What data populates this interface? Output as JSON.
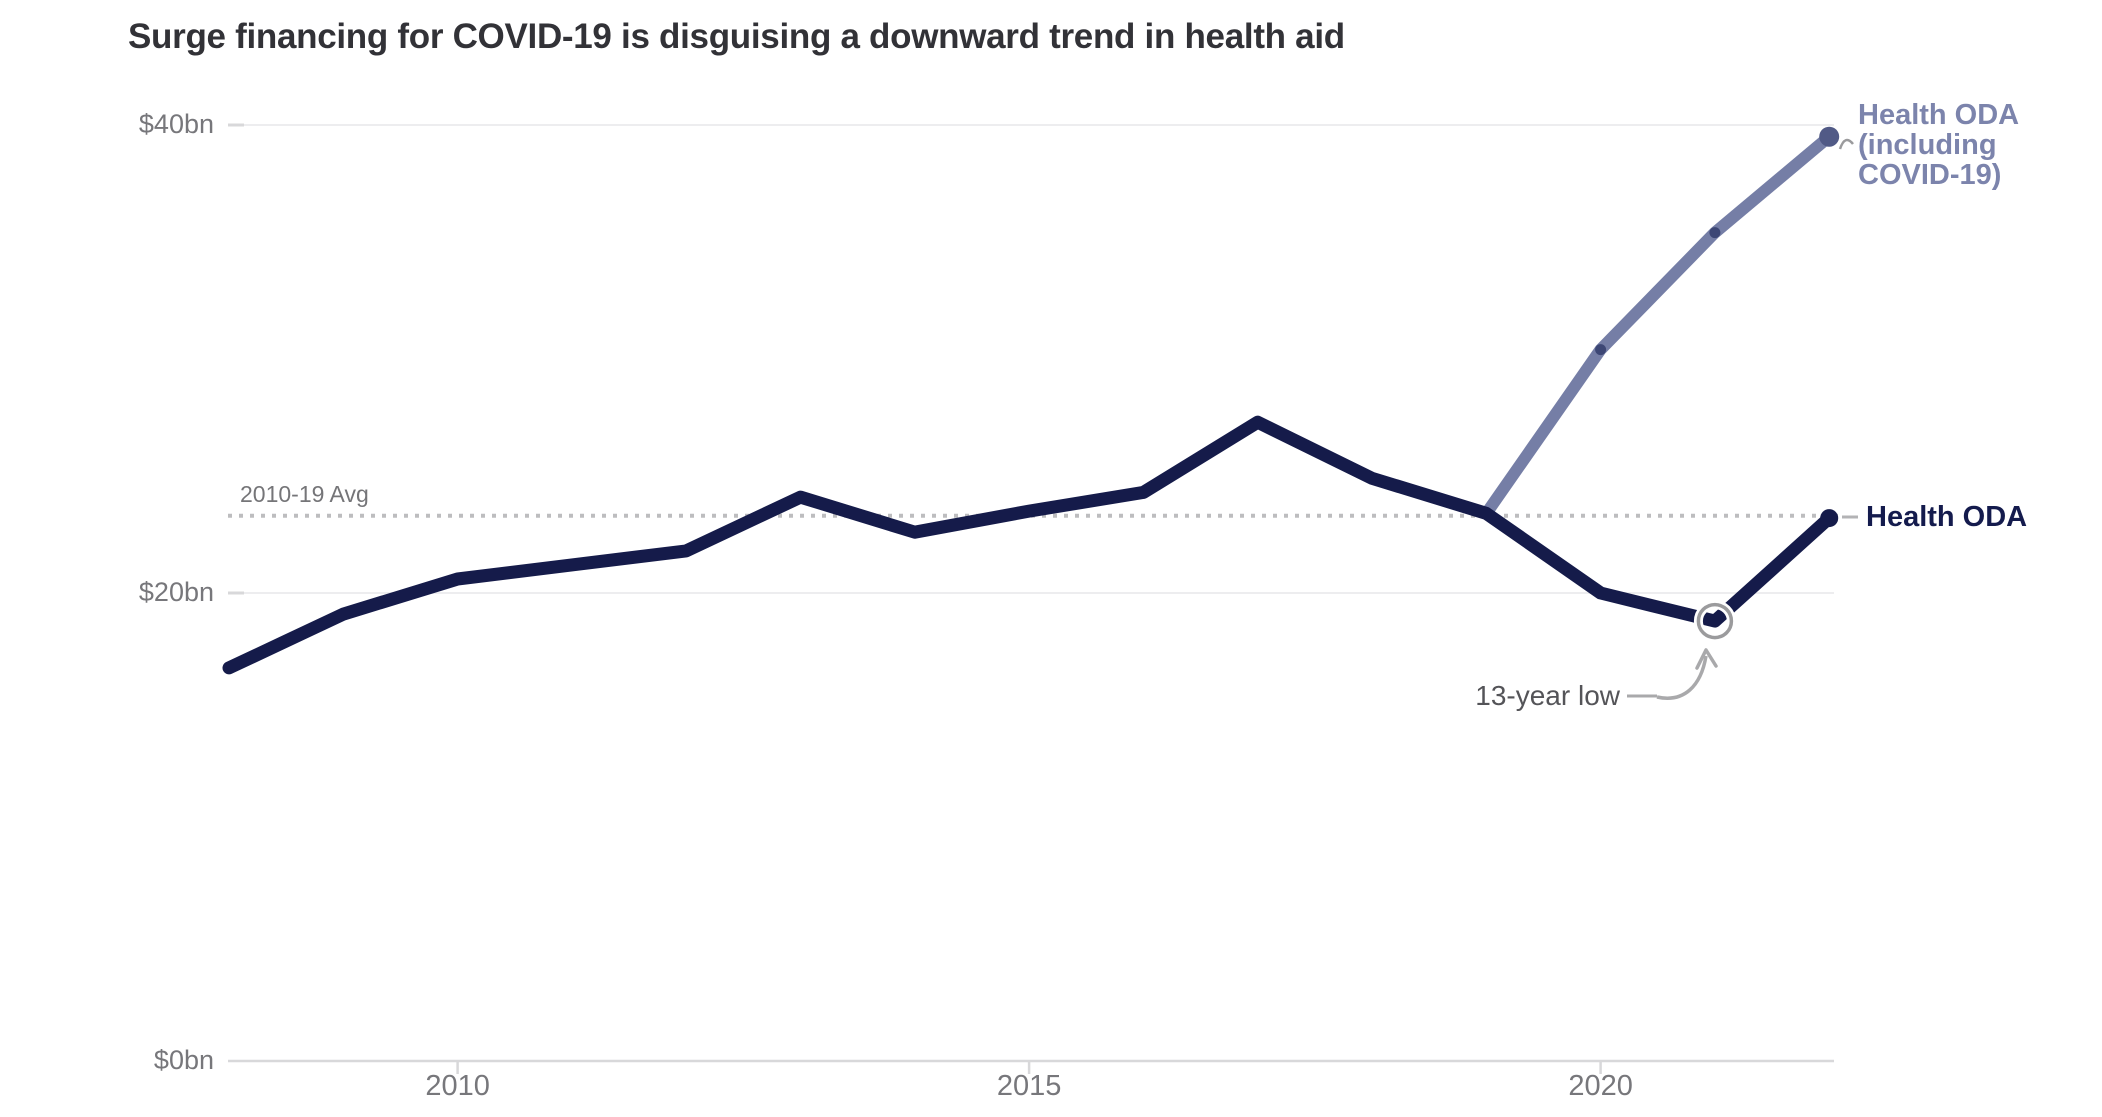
{
  "title": "Surge financing for COVID-19 is disguising a downward trend in health aid",
  "chart_data": {
    "type": "line",
    "x": [
      2008,
      2009,
      2010,
      2011,
      2012,
      2013,
      2014,
      2015,
      2016,
      2017,
      2018,
      2019,
      2020,
      2021,
      2022
    ],
    "series": [
      {
        "name": "Health ODA",
        "color": "#151b4a",
        "x": [
          2008,
          2009,
          2010,
          2011,
          2012,
          2013,
          2014,
          2015,
          2016,
          2017,
          2018,
          2019,
          2020,
          2021,
          2022
        ],
        "values": [
          16.8,
          19.1,
          20.6,
          21.2,
          21.8,
          24.1,
          22.6,
          23.5,
          24.3,
          27.3,
          24.9,
          23.4,
          20.0,
          18.8,
          23.2
        ]
      },
      {
        "name": "Health ODA (including COVID-19)",
        "color": "#757ea6",
        "x": [
          2019,
          2020,
          2021,
          2022
        ],
        "values": [
          23.4,
          30.4,
          35.4,
          39.5
        ]
      }
    ],
    "reference_line": {
      "label": "2010-19 Avg",
      "value": 23.3
    },
    "annotation": {
      "text": "13-year low",
      "year": 2021,
      "value": 18.8
    },
    "y_ticks": [
      {
        "label": "$40bn",
        "value": 40
      },
      {
        "label": "$20bn",
        "value": 20
      },
      {
        "label": "$0bn",
        "value": 0
      }
    ],
    "x_ticks": [
      {
        "label": "2010",
        "year": 2010
      },
      {
        "label": "2015",
        "year": 2015
      },
      {
        "label": "2020",
        "year": 2020
      }
    ],
    "ylim": [
      0,
      40
    ],
    "grid": "horizontal",
    "legend_position": "right-end-of-lines",
    "series_end_labels": {
      "covid": "Health ODA\n(including\nCOVID-19)",
      "oda": "Health ODA"
    }
  },
  "colors": {
    "oda_line": "#151b4a",
    "covid_line": "#757ea6",
    "covid_label": "#7c84ac",
    "covid_point": "#3d4775",
    "covid_end_point": "#515a86",
    "gridline": "#ededef",
    "axis_line": "#d8d8da",
    "dotted_avg": "#bdbdbf",
    "annotation_gray": "#a9a9ab",
    "circle_gray": "#9b9b9d",
    "tick_text": "#77777b",
    "title_text": "#323237"
  }
}
